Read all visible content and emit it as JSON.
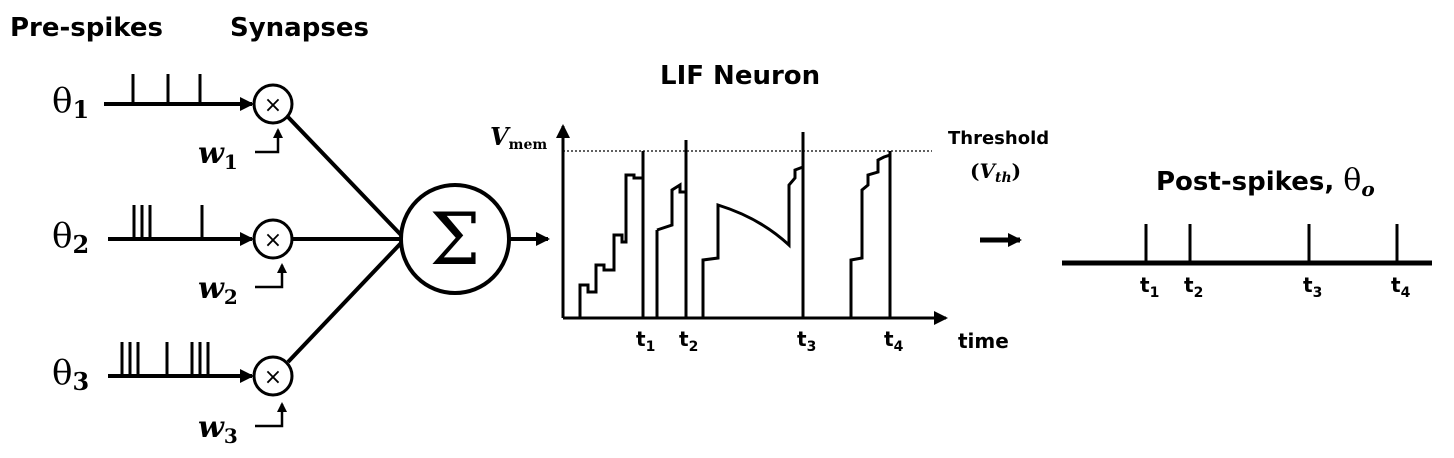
{
  "headers": {
    "pre_spikes": "Pre-spikes",
    "synapses": "Synapses",
    "neuron": "LIF Neuron",
    "post_spikes": "Post-spikes, ",
    "post_theta": "θ",
    "post_theta_sub": "o"
  },
  "inputs": [
    {
      "theta": "θ",
      "sub": "1",
      "weight": "w",
      "wsub": "1"
    },
    {
      "theta": "θ",
      "sub": "2",
      "weight": "w",
      "wsub": "2"
    },
    {
      "theta": "θ",
      "sub": "3",
      "weight": "w",
      "wsub": "3"
    }
  ],
  "multiply_symbol": "×",
  "sum_symbol": "Σ",
  "membrane_plot": {
    "ylabel": "V",
    "ylabel_sub": "mem",
    "xlabel": "time",
    "threshold_label": "Threshold",
    "threshold_sym_open": "(",
    "threshold_sym": "V",
    "threshold_sub": "th",
    "threshold_sym_close": ")",
    "ticks": [
      {
        "t": "t",
        "sub": "1"
      },
      {
        "t": "t",
        "sub": "2"
      },
      {
        "t": "t",
        "sub": "3"
      },
      {
        "t": "t",
        "sub": "4"
      }
    ]
  },
  "post_ticks": [
    {
      "t": "t",
      "sub": "1"
    },
    {
      "t": "t",
      "sub": "2"
    },
    {
      "t": "t",
      "sub": "3"
    },
    {
      "t": "t",
      "sub": "4"
    }
  ]
}
